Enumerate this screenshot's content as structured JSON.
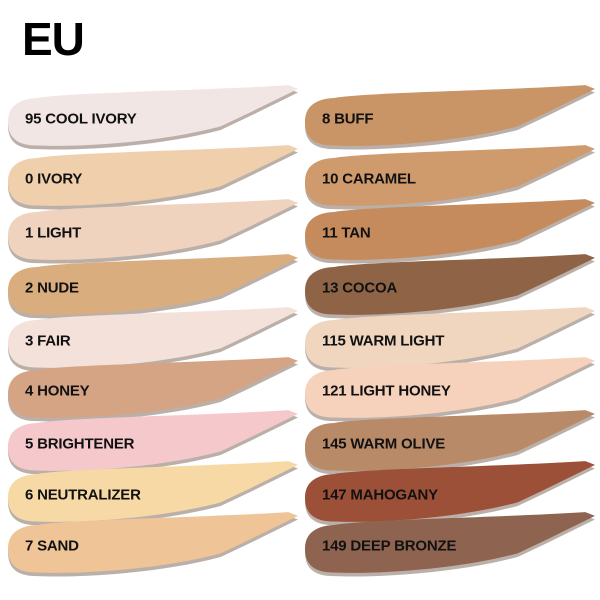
{
  "title": "EU",
  "columns": [
    {
      "shades": [
        {
          "label": "95 COOL IVORY",
          "color": "#f2e6e4"
        },
        {
          "label": "0 IVORY",
          "color": "#f0cfad"
        },
        {
          "label": "1 LIGHT",
          "color": "#efd3bf"
        },
        {
          "label": "2 NUDE",
          "color": "#d9ad7d"
        },
        {
          "label": "3 FAIR",
          "color": "#f3e1da"
        },
        {
          "label": "4 HONEY",
          "color": "#d4a485"
        },
        {
          "label": "5 BRIGHTENER",
          "color": "#f5c9cc"
        },
        {
          "label": "6 NEUTRALIZER",
          "color": "#f7d9a6"
        },
        {
          "label": "7 SAND",
          "color": "#efc597"
        }
      ]
    },
    {
      "shades": [
        {
          "label": "8 BUFF",
          "color": "#c99466"
        },
        {
          "label": "10 CARAMEL",
          "color": "#cf9a6c"
        },
        {
          "label": "11 TAN",
          "color": "#c68b5d"
        },
        {
          "label": "13 COCOA",
          "color": "#8f6446"
        },
        {
          "label": "115 WARM LIGHT",
          "color": "#f0d6bf"
        },
        {
          "label": "121 LIGHT HONEY",
          "color": "#f6d2bc"
        },
        {
          "label": "145 WARM OLIVE",
          "color": "#b98a68"
        },
        {
          "label": "147 MAHOGANY",
          "color": "#9c5038"
        },
        {
          "label": "149 DEEP BRONZE",
          "color": "#8e6450"
        }
      ]
    }
  ]
}
